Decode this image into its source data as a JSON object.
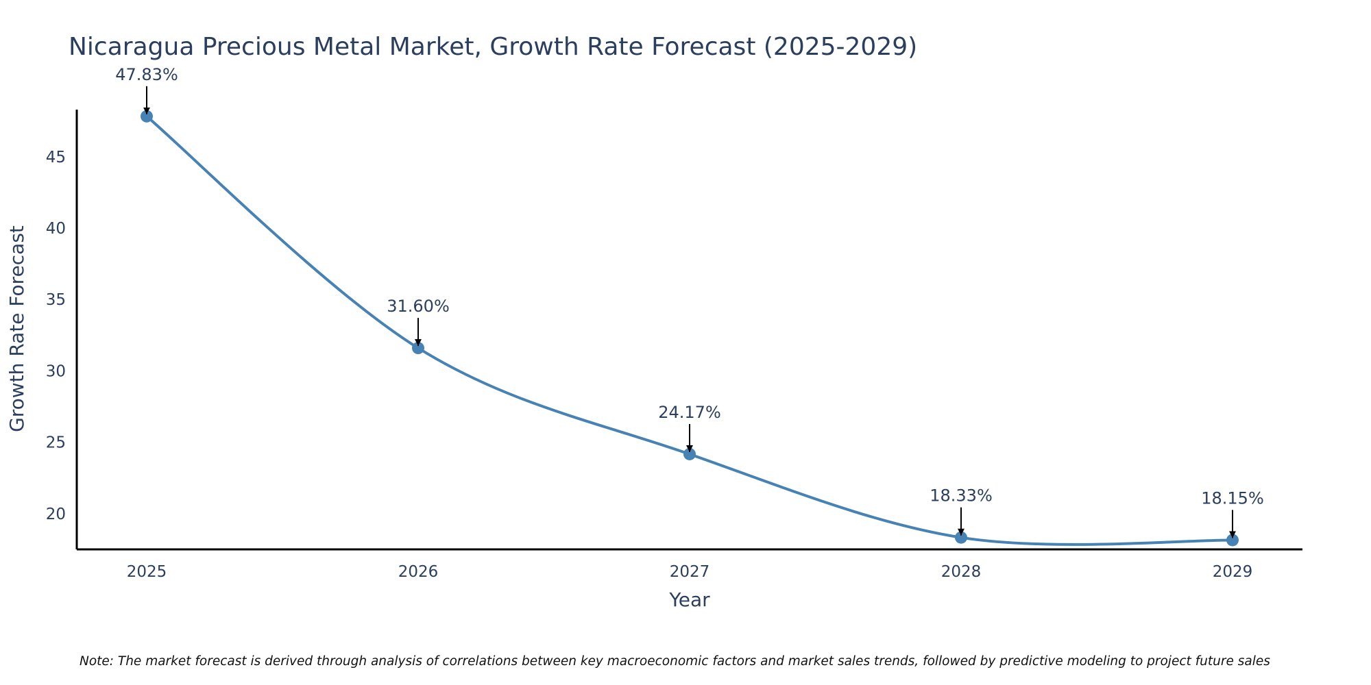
{
  "note": "Note: The market forecast is derived through analysis of correlations between key macroeconomic factors and market sales trends, followed by predictive modeling to project future sales",
  "chart_data": {
    "type": "line",
    "title": "Nicaragua Precious Metal Market, Growth Rate Forecast (2025-2029)",
    "xlabel": "Year",
    "ylabel": "Growth Rate Forecast",
    "categories": [
      "2025",
      "2026",
      "2027",
      "2028",
      "2029"
    ],
    "values": [
      47.83,
      31.6,
      24.17,
      18.33,
      18.15
    ],
    "data_labels": [
      "47.83%",
      "31.60%",
      "24.17%",
      "18.33%",
      "18.15%"
    ],
    "yticks": [
      20,
      25,
      30,
      35,
      40,
      45
    ],
    "ylim": [
      17.5,
      48.3
    ],
    "line_color": "#4682b4",
    "marker_color": "#4682b4",
    "grid": false,
    "legend": "none"
  }
}
